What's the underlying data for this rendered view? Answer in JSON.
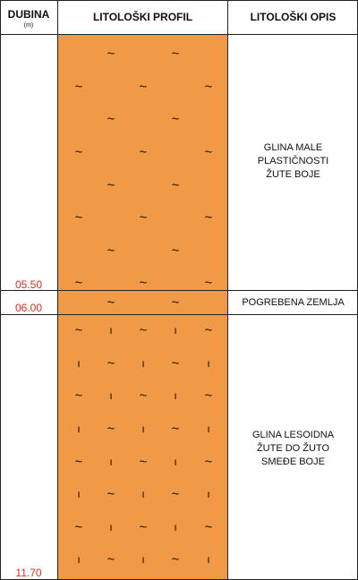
{
  "header": {
    "depth_label": "DUBINA",
    "depth_unit": "(m)",
    "profile_label": "LITOLOŠKI PROFIL",
    "description_label": "LITOLOŠKI OPIS"
  },
  "layers": [
    {
      "bottom_depth": "05.50",
      "description": [
        "GLINA MALE",
        "PLASTIČNOSTI",
        "ŽUTE BOJE"
      ],
      "pattern": "tilde",
      "color": "#f09a48"
    },
    {
      "bottom_depth": "06.00",
      "description": [
        "POGREBENA ZEMLJA"
      ],
      "pattern": "tilde",
      "color": "#f09a48"
    },
    {
      "bottom_depth": "11.70",
      "description": [
        "GLINA LESOIDNA",
        "ŽUTE DO ŽUTO",
        "SMEĐE BOJE"
      ],
      "pattern": "tilde-bar",
      "color": "#f09a48"
    }
  ],
  "symbols": {
    "tilde": "~",
    "bar": "ı"
  }
}
